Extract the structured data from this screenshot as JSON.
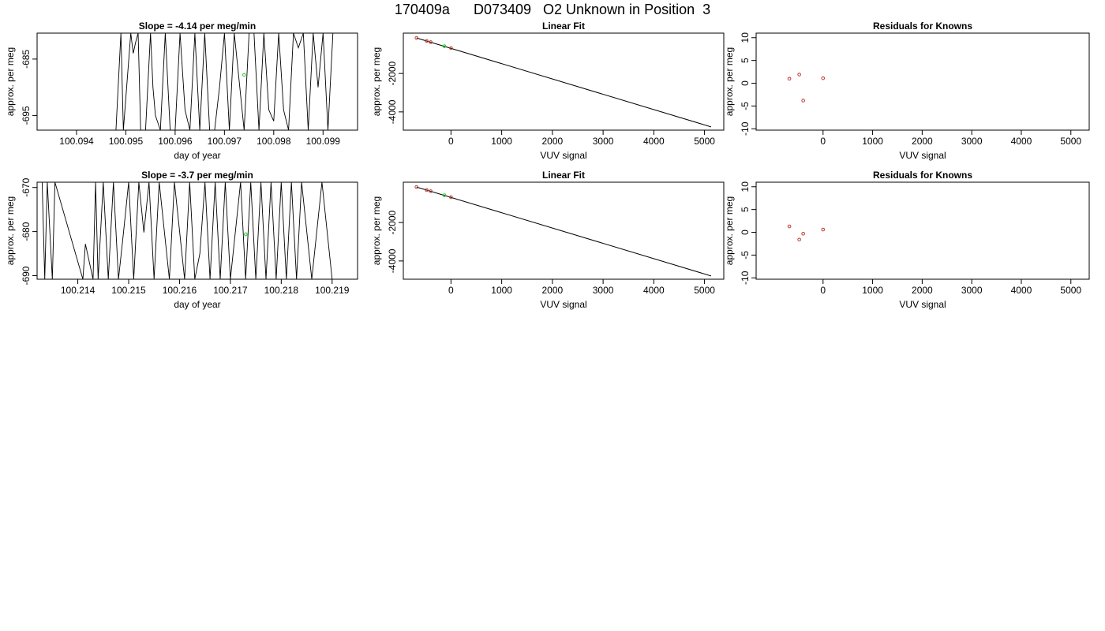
{
  "figure": {
    "title": "170409a      D073409   O2 Unknown in Position  3"
  },
  "colors": {
    "line": "#000000",
    "known_point": "#c0392b",
    "unknown_point": "#22cc22",
    "background": "#ffffff"
  },
  "chart_data": [
    {
      "type": "line",
      "title": "Slope =  -4.14  per meg/min",
      "xlabel": "day of year",
      "ylabel": "approx. per meg",
      "xlim": [
        100.0932,
        100.0997
      ],
      "ylim": [
        -697.6,
        -680.4
      ],
      "xticks": [
        100.094,
        100.095,
        100.096,
        100.097,
        100.098,
        100.099
      ],
      "yticks": [
        -695,
        -685
      ],
      "series": [
        {
          "values_description": "rapidly oscillating trace",
          "x": [
            100.0948,
            100.0949,
            100.09495,
            100.0951,
            100.09515,
            100.0952,
            100.09525,
            100.0953,
            100.0954,
            100.0955,
            100.09555,
            100.0956,
            100.0957,
            100.0958,
            100.0959,
            100.096,
            100.0961,
            100.0962,
            100.0963,
            100.0964,
            100.0965,
            100.0966,
            100.0967,
            100.0968,
            100.0969,
            100.097,
            100.0971,
            100.0972,
            100.0973,
            100.0974,
            100.0975,
            100.0976,
            100.0977,
            100.0978,
            100.0979,
            100.098,
            100.0981,
            100.0982,
            100.0983,
            100.0984,
            100.0985,
            100.0986,
            100.0987,
            100.0988,
            100.0989,
            100.099,
            100.0991,
            100.0992
          ],
          "y": [
            -697.6,
            -680.4,
            -697.6,
            -680.4,
            -684,
            -682,
            -680.4,
            -697.6,
            -697.6,
            -680.4,
            -690,
            -695,
            -697.6,
            -680.4,
            -697.6,
            -697.6,
            -680.4,
            -694,
            -697.6,
            -680.4,
            -697.6,
            -680.4,
            -697.6,
            -697.6,
            -690,
            -680.4,
            -697.6,
            -680.4,
            -689,
            -697.6,
            -680.4,
            -680.4,
            -697.6,
            -680.4,
            -694,
            -696,
            -680.4,
            -694,
            -697.6,
            -680.4,
            -683,
            -680.4,
            -697.6,
            -680.4,
            -690,
            -680.4,
            -697.6,
            -680.4
          ]
        }
      ],
      "unknown_point": {
        "x": 100.0974,
        "y": -687.8
      }
    },
    {
      "type": "scatter",
      "title": "Linear Fit",
      "xlabel": "VUV signal",
      "ylabel": "approx. per meg",
      "xlim": [
        -940,
        5380
      ],
      "ylim": [
        -4950,
        100
      ],
      "xticks": [
        0,
        1000,
        2000,
        3000,
        4000,
        5000
      ],
      "yticks": [
        -4000,
        -2000
      ],
      "fit_line": {
        "x": [
          -680,
          5130
        ],
        "y": [
          -150,
          -4780
        ]
      },
      "knowns": {
        "x": [
          -680,
          -480,
          -400,
          0
        ],
        "y": [
          -150,
          -310,
          -370,
          -680
        ]
      },
      "unknown_point": {
        "x": -130,
        "y": -580
      }
    },
    {
      "type": "scatter",
      "title": "Residuals for Knowns",
      "xlabel": "VUV signal",
      "ylabel": "approx. per meg",
      "xlim": [
        -1350,
        5370
      ],
      "ylim": [
        -10.3,
        11.0
      ],
      "xticks": [
        0,
        1000,
        2000,
        3000,
        4000,
        5000
      ],
      "yticks": [
        -10,
        -5,
        0,
        5,
        10
      ],
      "knowns": {
        "x": [
          -680,
          -480,
          -400,
          0
        ],
        "y": [
          1.0,
          1.9,
          -3.8,
          1.1
        ]
      }
    },
    {
      "type": "line",
      "title": "Slope =  -3.7  per meg/min",
      "xlabel": "day of year",
      "ylabel": "approx. per meg",
      "xlim": [
        100.2132,
        100.2195
      ],
      "ylim": [
        -690.8,
        -668.8
      ],
      "xticks": [
        100.214,
        100.215,
        100.216,
        100.217,
        100.218,
        100.219
      ],
      "yticks": [
        -690,
        -680,
        -670
      ],
      "series": [
        {
          "values_description": "rapidly oscillating trace",
          "x": [
            100.2133,
            100.21335,
            100.2134,
            100.2135,
            100.21355,
            100.2141,
            100.21415,
            100.2143,
            100.21435,
            100.2144,
            100.2145,
            100.2146,
            100.2147,
            100.2148,
            100.2149,
            100.215,
            100.2151,
            100.2152,
            100.2153,
            100.2154,
            100.2155,
            100.2156,
            100.2158,
            100.2159,
            100.2161,
            100.2162,
            100.2163,
            100.2164,
            100.2165,
            100.2166,
            100.2167,
            100.2168,
            100.2169,
            100.217,
            100.2172,
            100.2173,
            100.2174,
            100.2175,
            100.2176,
            100.2177,
            100.2178,
            100.2179,
            100.218,
            100.2181,
            100.2182,
            100.2183,
            100.2184,
            100.2186,
            100.2188,
            100.219
          ],
          "y": [
            -668.8,
            -690.8,
            -668.8,
            -690.8,
            -668.8,
            -690.8,
            -682.8,
            -690.8,
            -668.8,
            -690.8,
            -668.8,
            -690.8,
            -668.8,
            -690.8,
            -680,
            -668.8,
            -690.8,
            -668.8,
            -680.2,
            -668.8,
            -690.8,
            -668.8,
            -690.8,
            -668.8,
            -690.8,
            -668.8,
            -690.8,
            -685,
            -668.8,
            -690.8,
            -668.8,
            -690.8,
            -668.8,
            -690.8,
            -668.8,
            -690.8,
            -668.8,
            -690.8,
            -668.8,
            -690.8,
            -668.8,
            -690.8,
            -668.8,
            -690.8,
            -668.8,
            -690.8,
            -668.8,
            -690.8,
            -668.8,
            -690.8
          ]
        }
      ],
      "unknown_point": {
        "x": 100.2173,
        "y": -680.6
      }
    },
    {
      "type": "scatter",
      "title": "Linear Fit",
      "xlabel": "VUV signal",
      "ylabel": "approx. per meg",
      "xlim": [
        -940,
        5380
      ],
      "ylim": [
        -4950,
        100
      ],
      "xticks": [
        0,
        1000,
        2000,
        3000,
        4000,
        5000
      ],
      "yticks": [
        -4000,
        -2000
      ],
      "fit_line": {
        "x": [
          -680,
          5130
        ],
        "y": [
          -150,
          -4780
        ]
      },
      "knowns": {
        "x": [
          -680,
          -480,
          -400,
          0
        ],
        "y": [
          -150,
          -310,
          -370,
          -680
        ]
      },
      "unknown_point": {
        "x": -130,
        "y": -580
      }
    },
    {
      "type": "scatter",
      "title": "Residuals for Knowns",
      "xlabel": "VUV signal",
      "ylabel": "approx. per meg",
      "xlim": [
        -1350,
        5370
      ],
      "ylim": [
        -10.3,
        11.0
      ],
      "xticks": [
        0,
        1000,
        2000,
        3000,
        4000,
        5000
      ],
      "yticks": [
        -10,
        -5,
        0,
        5,
        10
      ],
      "knowns": {
        "x": [
          -680,
          -480,
          -400,
          0
        ],
        "y": [
          1.3,
          -1.6,
          -0.3,
          0.6
        ]
      }
    }
  ]
}
